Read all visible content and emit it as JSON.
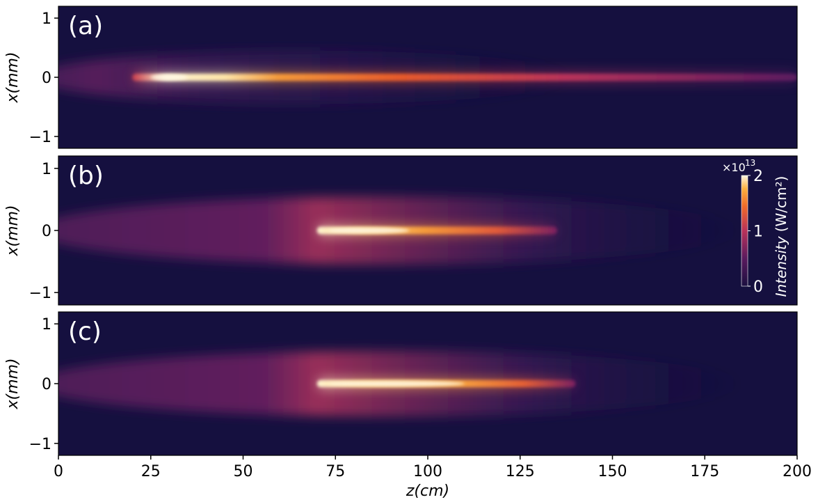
{
  "chart_data": {
    "type": "heatmap",
    "xlabel": "z(cm)",
    "ylabel": "x(mm)",
    "xlim": [
      0,
      200
    ],
    "ylim": [
      -1.2,
      1.2
    ],
    "xticks": [
      "0",
      "25",
      "50",
      "75",
      "100",
      "125",
      "150",
      "175",
      "200"
    ],
    "yticks": [
      "1",
      "0",
      "−1"
    ],
    "colormap": "inferno",
    "background_color": "#15103f",
    "colorbar": {
      "label": "Intensity",
      "unit": "(W/cm²)",
      "multiplier": "×10",
      "exponent": "13",
      "ticks": [
        "0",
        "1",
        "2"
      ],
      "range": [
        0,
        2
      ]
    },
    "panels": [
      {
        "label": "(a)",
        "filament": {
          "start_z": 20,
          "end_z": 200,
          "peak_z": [
            25,
            35
          ],
          "peak_intensity": 2.0,
          "half_width_mm": 0.06
        },
        "halo": {
          "start_z": 0,
          "end_z": 135,
          "half_width_mm": 0.45
        }
      },
      {
        "label": "(b)",
        "filament": {
          "start_z": 70,
          "end_z": 135,
          "peak_z": [
            73,
            95
          ],
          "peak_intensity": 2.0,
          "half_width_mm": 0.06
        },
        "halo": {
          "start_z": 0,
          "end_z": 178,
          "half_width_mm": 0.55
        }
      },
      {
        "label": "(c)",
        "filament": {
          "start_z": 70,
          "end_z": 140,
          "peak_z": [
            73,
            110
          ],
          "peak_intensity": 2.0,
          "half_width_mm": 0.06
        },
        "halo": {
          "start_z": 0,
          "end_z": 178,
          "half_width_mm": 0.55
        }
      }
    ]
  }
}
